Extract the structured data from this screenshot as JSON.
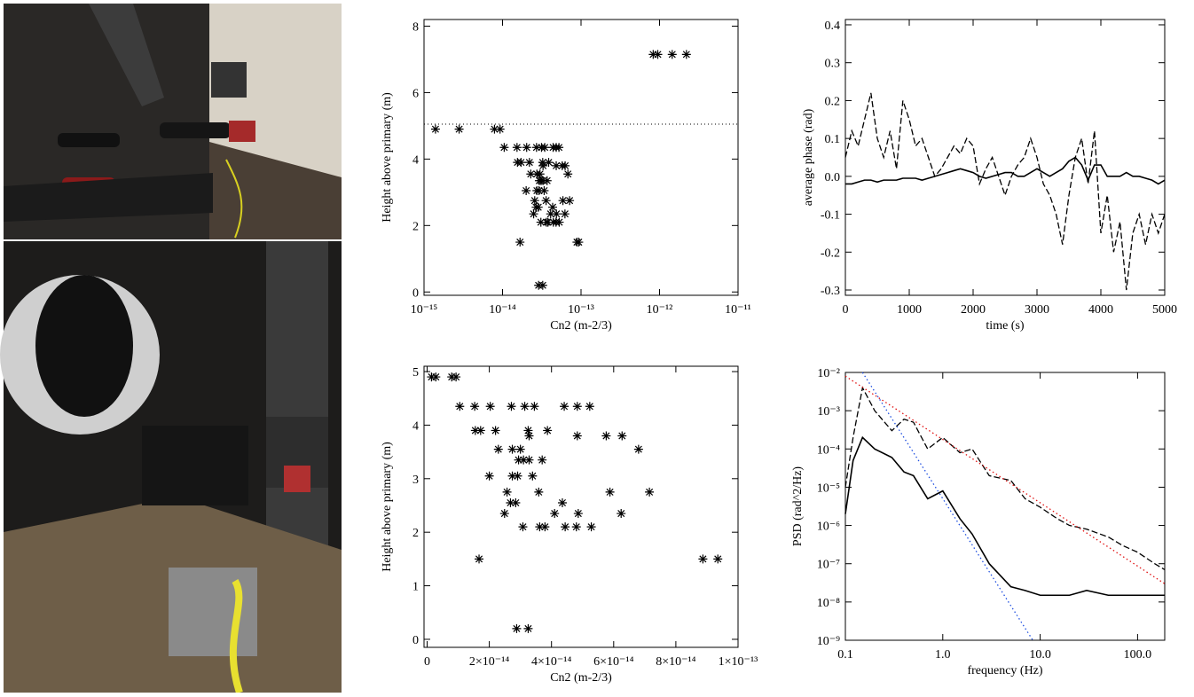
{
  "chart_data": [
    {
      "type": "scatter",
      "x_label": "Cn2 (m-2/3)",
      "y_label": "Height above primary (m)",
      "xlog": true,
      "xlim": [
        1e-15,
        1e-11
      ],
      "xticks": [
        {
          "value": 1e-15,
          "label": "10⁻¹⁵"
        },
        {
          "value": 1e-14,
          "label": "10⁻¹⁴"
        },
        {
          "value": 1e-13,
          "label": "10⁻¹³"
        },
        {
          "value": 1e-12,
          "label": "10⁻¹²"
        },
        {
          "value": 1e-11,
          "label": "10⁻¹¹"
        }
      ],
      "ylim": [
        -0.1,
        8.2
      ],
      "yticks": [
        0,
        2,
        4,
        6,
        8
      ],
      "hline": 5.05,
      "color": "#000000",
      "x": [
        8.3e-13,
        9.5e-13,
        1.45e-12,
        2.2e-12,
        1.4e-15,
        2.8e-15,
        7.9e-15,
        9.3e-15,
        1.05e-14,
        1.53e-14,
        2.03e-14,
        2.71e-14,
        3.14e-14,
        3.45e-14,
        4.41e-14,
        4.83e-14,
        5.23e-14,
        1.55e-14,
        1.72e-14,
        2.2e-14,
        3.25e-14,
        3.87e-14,
        3.28e-14,
        4.83e-14,
        5.76e-14,
        6.27e-14,
        2.29e-14,
        2.74e-14,
        3e-14,
        6.8e-14,
        2.94e-14,
        3.1e-14,
        3.28e-14,
        3.7e-14,
        2e-14,
        2.74e-14,
        2.91e-14,
        3.39e-14,
        2.57e-14,
        3.59e-14,
        5.88e-14,
        7.15e-14,
        2.68e-14,
        2.85e-14,
        4.35e-14,
        2.49e-14,
        4.1e-14,
        4.86e-14,
        6.24e-14,
        3.08e-14,
        3.62e-14,
        3.79e-14,
        4.44e-14,
        4.8e-14,
        5.28e-14,
        1.67e-14,
        8.87e-14,
        9.35e-14,
        2.88e-14,
        3.25e-14
      ],
      "values": [
        7.15,
        7.15,
        7.15,
        7.15,
        4.9,
        4.9,
        4.9,
        4.9,
        4.35,
        4.35,
        4.35,
        4.35,
        4.35,
        4.35,
        4.35,
        4.35,
        4.35,
        3.9,
        3.9,
        3.9,
        3.9,
        3.9,
        3.8,
        3.8,
        3.8,
        3.8,
        3.55,
        3.55,
        3.55,
        3.55,
        3.35,
        3.35,
        3.35,
        3.35,
        3.05,
        3.05,
        3.05,
        3.05,
        2.75,
        2.75,
        2.75,
        2.75,
        2.55,
        2.55,
        2.55,
        2.35,
        2.35,
        2.35,
        2.35,
        2.1,
        2.1,
        2.1,
        2.1,
        2.1,
        2.1,
        1.5,
        1.5,
        1.5,
        0.2,
        0.2
      ]
    },
    {
      "type": "scatter",
      "x_label": "Cn2 (m-2/3)",
      "y_label": "Height above primary (m)",
      "xlim": [
        -1e-15,
        1e-13
      ],
      "xticks": [
        0,
        {
          "value": 2e-14,
          "label": "2×10⁻¹⁴"
        },
        {
          "value": 4e-14,
          "label": "4×10⁻¹⁴"
        },
        {
          "value": 6e-14,
          "label": "6×10⁻¹⁴"
        },
        {
          "value": 8e-14,
          "label": "8×10⁻¹⁴"
        },
        {
          "value": 1e-13,
          "label": "1×10⁻¹³"
        }
      ],
      "ylim": [
        -0.15,
        5.1
      ],
      "yticks": [
        0,
        1,
        2,
        3,
        4,
        5
      ],
      "color": "#000000",
      "x": [
        1.4e-15,
        2.8e-15,
        7.9e-15,
        9.3e-15,
        1.05e-14,
        1.53e-14,
        2.03e-14,
        2.71e-14,
        3.14e-14,
        3.45e-14,
        4.41e-14,
        4.83e-14,
        5.23e-14,
        1.55e-14,
        1.72e-14,
        2.2e-14,
        3.25e-14,
        3.87e-14,
        3.28e-14,
        4.83e-14,
        5.76e-14,
        6.27e-14,
        2.29e-14,
        2.74e-14,
        3e-14,
        6.8e-14,
        2.94e-14,
        3.1e-14,
        3.28e-14,
        3.7e-14,
        2e-14,
        2.74e-14,
        2.91e-14,
        3.39e-14,
        2.57e-14,
        3.59e-14,
        5.88e-14,
        7.15e-14,
        2.68e-14,
        2.85e-14,
        4.35e-14,
        2.49e-14,
        4.1e-14,
        4.86e-14,
        6.24e-14,
        3.08e-14,
        3.62e-14,
        3.79e-14,
        4.44e-14,
        4.8e-14,
        5.28e-14,
        1.67e-14,
        8.87e-14,
        9.35e-14,
        2.88e-14,
        3.25e-14
      ],
      "values": [
        4.9,
        4.9,
        4.9,
        4.9,
        4.35,
        4.35,
        4.35,
        4.35,
        4.35,
        4.35,
        4.35,
        4.35,
        4.35,
        3.9,
        3.9,
        3.9,
        3.9,
        3.9,
        3.8,
        3.8,
        3.8,
        3.8,
        3.55,
        3.55,
        3.55,
        3.55,
        3.35,
        3.35,
        3.35,
        3.35,
        3.05,
        3.05,
        3.05,
        3.05,
        2.75,
        2.75,
        2.75,
        2.75,
        2.55,
        2.55,
        2.55,
        2.35,
        2.35,
        2.35,
        2.35,
        2.1,
        2.1,
        2.1,
        2.1,
        2.1,
        2.1,
        1.5,
        1.5,
        1.5,
        0.2,
        0.2
      ]
    },
    {
      "type": "line",
      "x_label": "time (s)",
      "y_label": "average phase (rad)",
      "xlim": [
        0,
        5000
      ],
      "xticks": [
        0,
        1000,
        2000,
        3000,
        4000,
        5000
      ],
      "ylim": [
        -0.314,
        0.414
      ],
      "yticks": [
        -0.3,
        -0.2,
        -0.1,
        {
          "value": 0,
          "label": "0.0"
        },
        0.1,
        0.2,
        0.3,
        0.4
      ],
      "x": [
        0,
        100,
        200,
        300,
        400,
        500,
        600,
        700,
        800,
        900,
        1000,
        1100,
        1200,
        1300,
        1400,
        1500,
        1600,
        1700,
        1800,
        1900,
        2000,
        2100,
        2200,
        2300,
        2400,
        2500,
        2600,
        2700,
        2800,
        2900,
        3000,
        3100,
        3200,
        3300,
        3400,
        3500,
        3600,
        3700,
        3800,
        3900,
        4000,
        4100,
        4200,
        4300,
        4400,
        4500,
        4600,
        4700,
        4800,
        4900,
        5000
      ],
      "series": [
        {
          "color": "#000000",
          "dash": "dashed",
          "values": [
            0.05,
            0.12,
            0.08,
            0.15,
            0.22,
            0.1,
            0.05,
            0.12,
            0.02,
            0.2,
            0.15,
            0.08,
            0.1,
            0.05,
            0.0,
            0.02,
            0.05,
            0.08,
            0.06,
            0.1,
            0.08,
            -0.02,
            0.02,
            0.05,
            0.0,
            -0.05,
            0.0,
            0.03,
            0.05,
            0.1,
            0.05,
            -0.02,
            -0.05,
            -0.1,
            -0.18,
            -0.05,
            0.05,
            0.1,
            -0.02,
            0.12,
            -0.15,
            -0.05,
            -0.2,
            -0.12,
            -0.3,
            -0.15,
            -0.1,
            -0.18,
            -0.1,
            -0.15,
            -0.1
          ]
        },
        {
          "color": "#000000",
          "dash": "solid",
          "values": [
            -0.02,
            -0.02,
            -0.015,
            -0.01,
            -0.01,
            -0.015,
            -0.01,
            -0.01,
            -0.01,
            -0.005,
            -0.005,
            -0.005,
            -0.01,
            -0.005,
            0.0,
            0.005,
            0.01,
            0.015,
            0.02,
            0.015,
            0.01,
            0.0,
            -0.005,
            0.0,
            0.005,
            0.01,
            0.01,
            0.0,
            0.0,
            0.01,
            0.02,
            0.01,
            0.0,
            0.01,
            0.02,
            0.04,
            0.05,
            0.03,
            -0.01,
            0.03,
            0.03,
            0.0,
            0.0,
            0.0,
            0.01,
            0.0,
            0.0,
            -0.005,
            -0.01,
            -0.02,
            -0.01
          ]
        }
      ]
    },
    {
      "type": "line",
      "x_label": "frequency (Hz)",
      "y_label": "PSD (rad^2/Hz)",
      "xlog": true,
      "ylog": true,
      "xlim": [
        0.1,
        190
      ],
      "xticks": [
        0.1,
        {
          "value": 1,
          "label": "1.0"
        },
        {
          "value": 10,
          "label": "10.0"
        },
        {
          "value": 100,
          "label": "100.0"
        }
      ],
      "ylim": [
        1e-09,
        0.01
      ],
      "yticks": [
        {
          "value": 1e-09,
          "label": "10⁻⁹"
        },
        {
          "value": 1e-08,
          "label": "10⁻⁸"
        },
        {
          "value": 1e-07,
          "label": "10⁻⁷"
        },
        {
          "value": 1e-06,
          "label": "10⁻⁶"
        },
        {
          "value": 1e-05,
          "label": "10⁻⁵"
        },
        {
          "value": 0.0001,
          "label": "10⁻⁴"
        },
        {
          "value": 0.001,
          "label": "10⁻³"
        },
        {
          "value": 0.01,
          "label": "10⁻²"
        }
      ],
      "series": [
        {
          "color": "#000000",
          "dash": "dashed",
          "x": [
            0.1,
            0.12,
            0.15,
            0.2,
            0.3,
            0.4,
            0.5,
            0.7,
            1,
            1.5,
            2,
            3,
            5,
            7,
            10,
            15,
            20,
            30,
            50,
            70,
            100,
            150,
            190
          ],
          "values": [
            1e-05,
            0.0002,
            0.004,
            0.001,
            0.0003,
            0.0006,
            0.0005,
            0.0001,
            0.0002,
            8e-05,
            0.0001,
            2e-05,
            1.5e-05,
            5e-06,
            3e-06,
            1.5e-06,
            1e-06,
            8e-07,
            5e-07,
            3e-07,
            2e-07,
            1e-07,
            7e-08
          ]
        },
        {
          "color": "#000000",
          "dash": "solid",
          "x": [
            0.1,
            0.12,
            0.15,
            0.2,
            0.3,
            0.4,
            0.5,
            0.7,
            1,
            1.5,
            2,
            3,
            5,
            7,
            10,
            15,
            20,
            30,
            50,
            70,
            100,
            150,
            190
          ],
          "values": [
            2e-06,
            5e-05,
            0.0002,
            0.0001,
            6e-05,
            2.5e-05,
            2e-05,
            5e-06,
            8e-06,
            1.5e-06,
            6e-07,
            1e-07,
            2.5e-08,
            2e-08,
            1.5e-08,
            1.5e-08,
            1.5e-08,
            2e-08,
            1.5e-08,
            1.5e-08,
            1.5e-08,
            1.5e-08,
            1.5e-08
          ]
        },
        {
          "color": "#e01010",
          "dash": "dotted",
          "x": [
            0.1,
            190
          ],
          "values": [
            0.008,
            3e-08
          ]
        },
        {
          "color": "#1f4fe0",
          "dash": "dotted",
          "x": [
            0.15,
            8.4
          ],
          "values": [
            0.01,
            1e-09
          ]
        }
      ]
    }
  ]
}
